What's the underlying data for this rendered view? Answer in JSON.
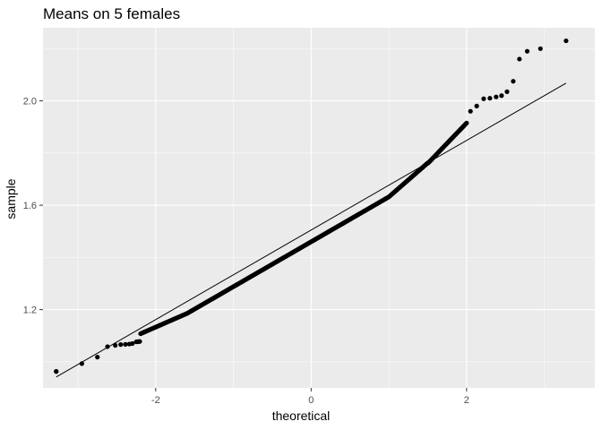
{
  "chart_data": {
    "type": "scatter",
    "title": "Means on 5 females",
    "xlabel": "theoretical",
    "ylabel": "sample",
    "xlim": [
      -3.45,
      3.65
    ],
    "ylim": [
      0.9,
      2.28
    ],
    "xticks": [
      -2,
      0,
      2
    ],
    "xtick_labels": [
      "-2",
      "0",
      "2"
    ],
    "yticks": [
      1.2,
      1.6,
      2.0
    ],
    "ytick_labels": [
      "1.2",
      "1.6",
      "2.0"
    ],
    "grid": true,
    "legend": "none",
    "reference_line": {
      "x": [
        -3.28,
        3.28
      ],
      "y": [
        0.942,
        2.068
      ]
    },
    "points": {
      "x": [
        -3.28,
        -2.95,
        -2.75,
        -2.62,
        -2.52,
        -2.45,
        -2.39,
        -2.34,
        -2.3,
        -3.28,
        3.28,
        2.95,
        2.78,
        2.68,
        2.6,
        2.52,
        2.45,
        2.38,
        2.3,
        2.22,
        2.13,
        2.05
      ],
      "y": [
        0.963,
        0.993,
        1.018,
        1.058,
        1.063,
        1.066,
        1.067,
        1.068,
        1.07,
        0.963,
        2.23,
        2.2,
        2.19,
        2.16,
        2.075,
        2.035,
        2.02,
        2.015,
        2.01,
        2.008,
        1.98,
        1.96
      ]
    },
    "point_color": "#000000",
    "panel_background": "#ebebeb",
    "grid_major_color": "#ffffff"
  }
}
